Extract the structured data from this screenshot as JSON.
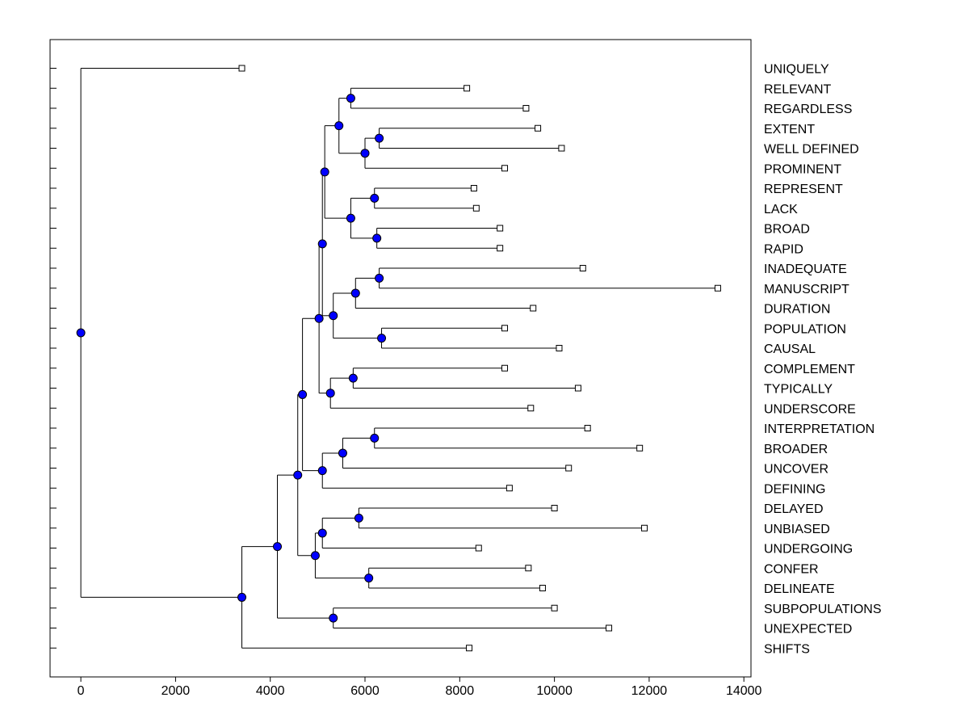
{
  "chart_data": {
    "type": "dendrogram",
    "title": "",
    "xlabel": "",
    "ylabel": "",
    "xlim": [
      -650,
      14150
    ],
    "xticks": [
      0,
      2000,
      4000,
      6000,
      8000,
      10000,
      12000,
      14000
    ],
    "xtick_labels": [
      "0",
      "2000",
      "4000",
      "6000",
      "8000",
      "10000",
      "12000",
      "14000"
    ],
    "grid": false,
    "colors": {
      "node_fill": "#0000ff",
      "node_stroke": "#000000",
      "leaf_fill": "#ffffff",
      "line": "#000000",
      "frame": "#000000"
    },
    "leaves": [
      {
        "label": "UNIQUELY",
        "value": 3400
      },
      {
        "label": "RELEVANT",
        "value": 8150
      },
      {
        "label": "REGARDLESS",
        "value": 9400
      },
      {
        "label": "EXTENT",
        "value": 9650
      },
      {
        "label": "WELL DEFINED",
        "value": 10150
      },
      {
        "label": "PROMINENT",
        "value": 8950
      },
      {
        "label": "REPRESENT",
        "value": 8300
      },
      {
        "label": "LACK",
        "value": 8350
      },
      {
        "label": "BROAD",
        "value": 8850
      },
      {
        "label": "RAPID",
        "value": 8850
      },
      {
        "label": "INADEQUATE",
        "value": 10600
      },
      {
        "label": "MANUSCRIPT",
        "value": 13450
      },
      {
        "label": "DURATION",
        "value": 9550
      },
      {
        "label": "POPULATION",
        "value": 8950
      },
      {
        "label": "CAUSAL",
        "value": 10100
      },
      {
        "label": "COMPLEMENT",
        "value": 8950
      },
      {
        "label": "TYPICALLY",
        "value": 10500
      },
      {
        "label": "UNDERSCORE",
        "value": 9500
      },
      {
        "label": "INTERPRETATION",
        "value": 10700
      },
      {
        "label": "BROADER",
        "value": 11800
      },
      {
        "label": "UNCOVER",
        "value": 10300
      },
      {
        "label": "DEFINING",
        "value": 9050
      },
      {
        "label": "DELAYED",
        "value": 10000
      },
      {
        "label": "UNBIASED",
        "value": 11900
      },
      {
        "label": "UNDERGOING",
        "value": 8400
      },
      {
        "label": "CONFER",
        "value": 9450
      },
      {
        "label": "DELINEATE",
        "value": 9750
      },
      {
        "label": "SUBPOPULATIONS",
        "value": 10000
      },
      {
        "label": "UNEXPECTED",
        "value": 11150
      },
      {
        "label": "SHIFTS",
        "value": 8200
      }
    ],
    "merges": [
      {
        "id": "n1",
        "value": 5700,
        "children": [
          1,
          2
        ]
      },
      {
        "id": "n2",
        "value": 6300,
        "children": [
          3,
          4
        ]
      },
      {
        "id": "n3",
        "value": 6000,
        "children": [
          "n2",
          5
        ]
      },
      {
        "id": "n4",
        "value": 5450,
        "children": [
          "n1",
          "n3"
        ]
      },
      {
        "id": "n5",
        "value": 6200,
        "children": [
          6,
          7
        ]
      },
      {
        "id": "n6",
        "value": 6250,
        "children": [
          8,
          9
        ]
      },
      {
        "id": "n7",
        "value": 5700,
        "children": [
          "n5",
          "n6"
        ]
      },
      {
        "id": "n8",
        "value": 5150,
        "children": [
          "n4",
          "n7"
        ]
      },
      {
        "id": "n9",
        "value": 6300,
        "children": [
          10,
          11
        ]
      },
      {
        "id": "n10",
        "value": 5800,
        "children": [
          "n9",
          12
        ]
      },
      {
        "id": "n11",
        "value": 6350,
        "children": [
          13,
          14
        ]
      },
      {
        "id": "n12",
        "value": 5330,
        "children": [
          "n10",
          "n11"
        ]
      },
      {
        "id": "n13",
        "value": 5100,
        "children": [
          "n8",
          "n12"
        ]
      },
      {
        "id": "n14",
        "value": 5750,
        "children": [
          15,
          16
        ]
      },
      {
        "id": "n15",
        "value": 5270,
        "children": [
          "n14",
          17
        ]
      },
      {
        "id": "n16",
        "value": 5030,
        "children": [
          "n13",
          "n15"
        ]
      },
      {
        "id": "n17",
        "value": 6200,
        "children": [
          18,
          19
        ]
      },
      {
        "id": "n18",
        "value": 5530,
        "children": [
          "n17",
          20
        ]
      },
      {
        "id": "n19",
        "value": 5100,
        "children": [
          "n18",
          21
        ]
      },
      {
        "id": "n20",
        "value": 4680,
        "children": [
          "n16",
          "n19"
        ]
      },
      {
        "id": "n21",
        "value": 5870,
        "children": [
          22,
          23
        ]
      },
      {
        "id": "n22",
        "value": 5100,
        "children": [
          "n21",
          24
        ]
      },
      {
        "id": "n23",
        "value": 6080,
        "children": [
          25,
          26
        ]
      },
      {
        "id": "n24",
        "value": 4950,
        "children": [
          "n22",
          "n23"
        ]
      },
      {
        "id": "n25",
        "value": 4580,
        "children": [
          "n20",
          "n24"
        ]
      },
      {
        "id": "n26",
        "value": 5330,
        "children": [
          27,
          28
        ]
      },
      {
        "id": "n27",
        "value": 4150,
        "children": [
          "n25",
          "n26"
        ]
      },
      {
        "id": "n28",
        "value": 3400,
        "children": [
          "n27",
          29
        ]
      },
      {
        "id": "n29",
        "value": 0,
        "children": [
          0,
          "n28"
        ]
      }
    ]
  }
}
